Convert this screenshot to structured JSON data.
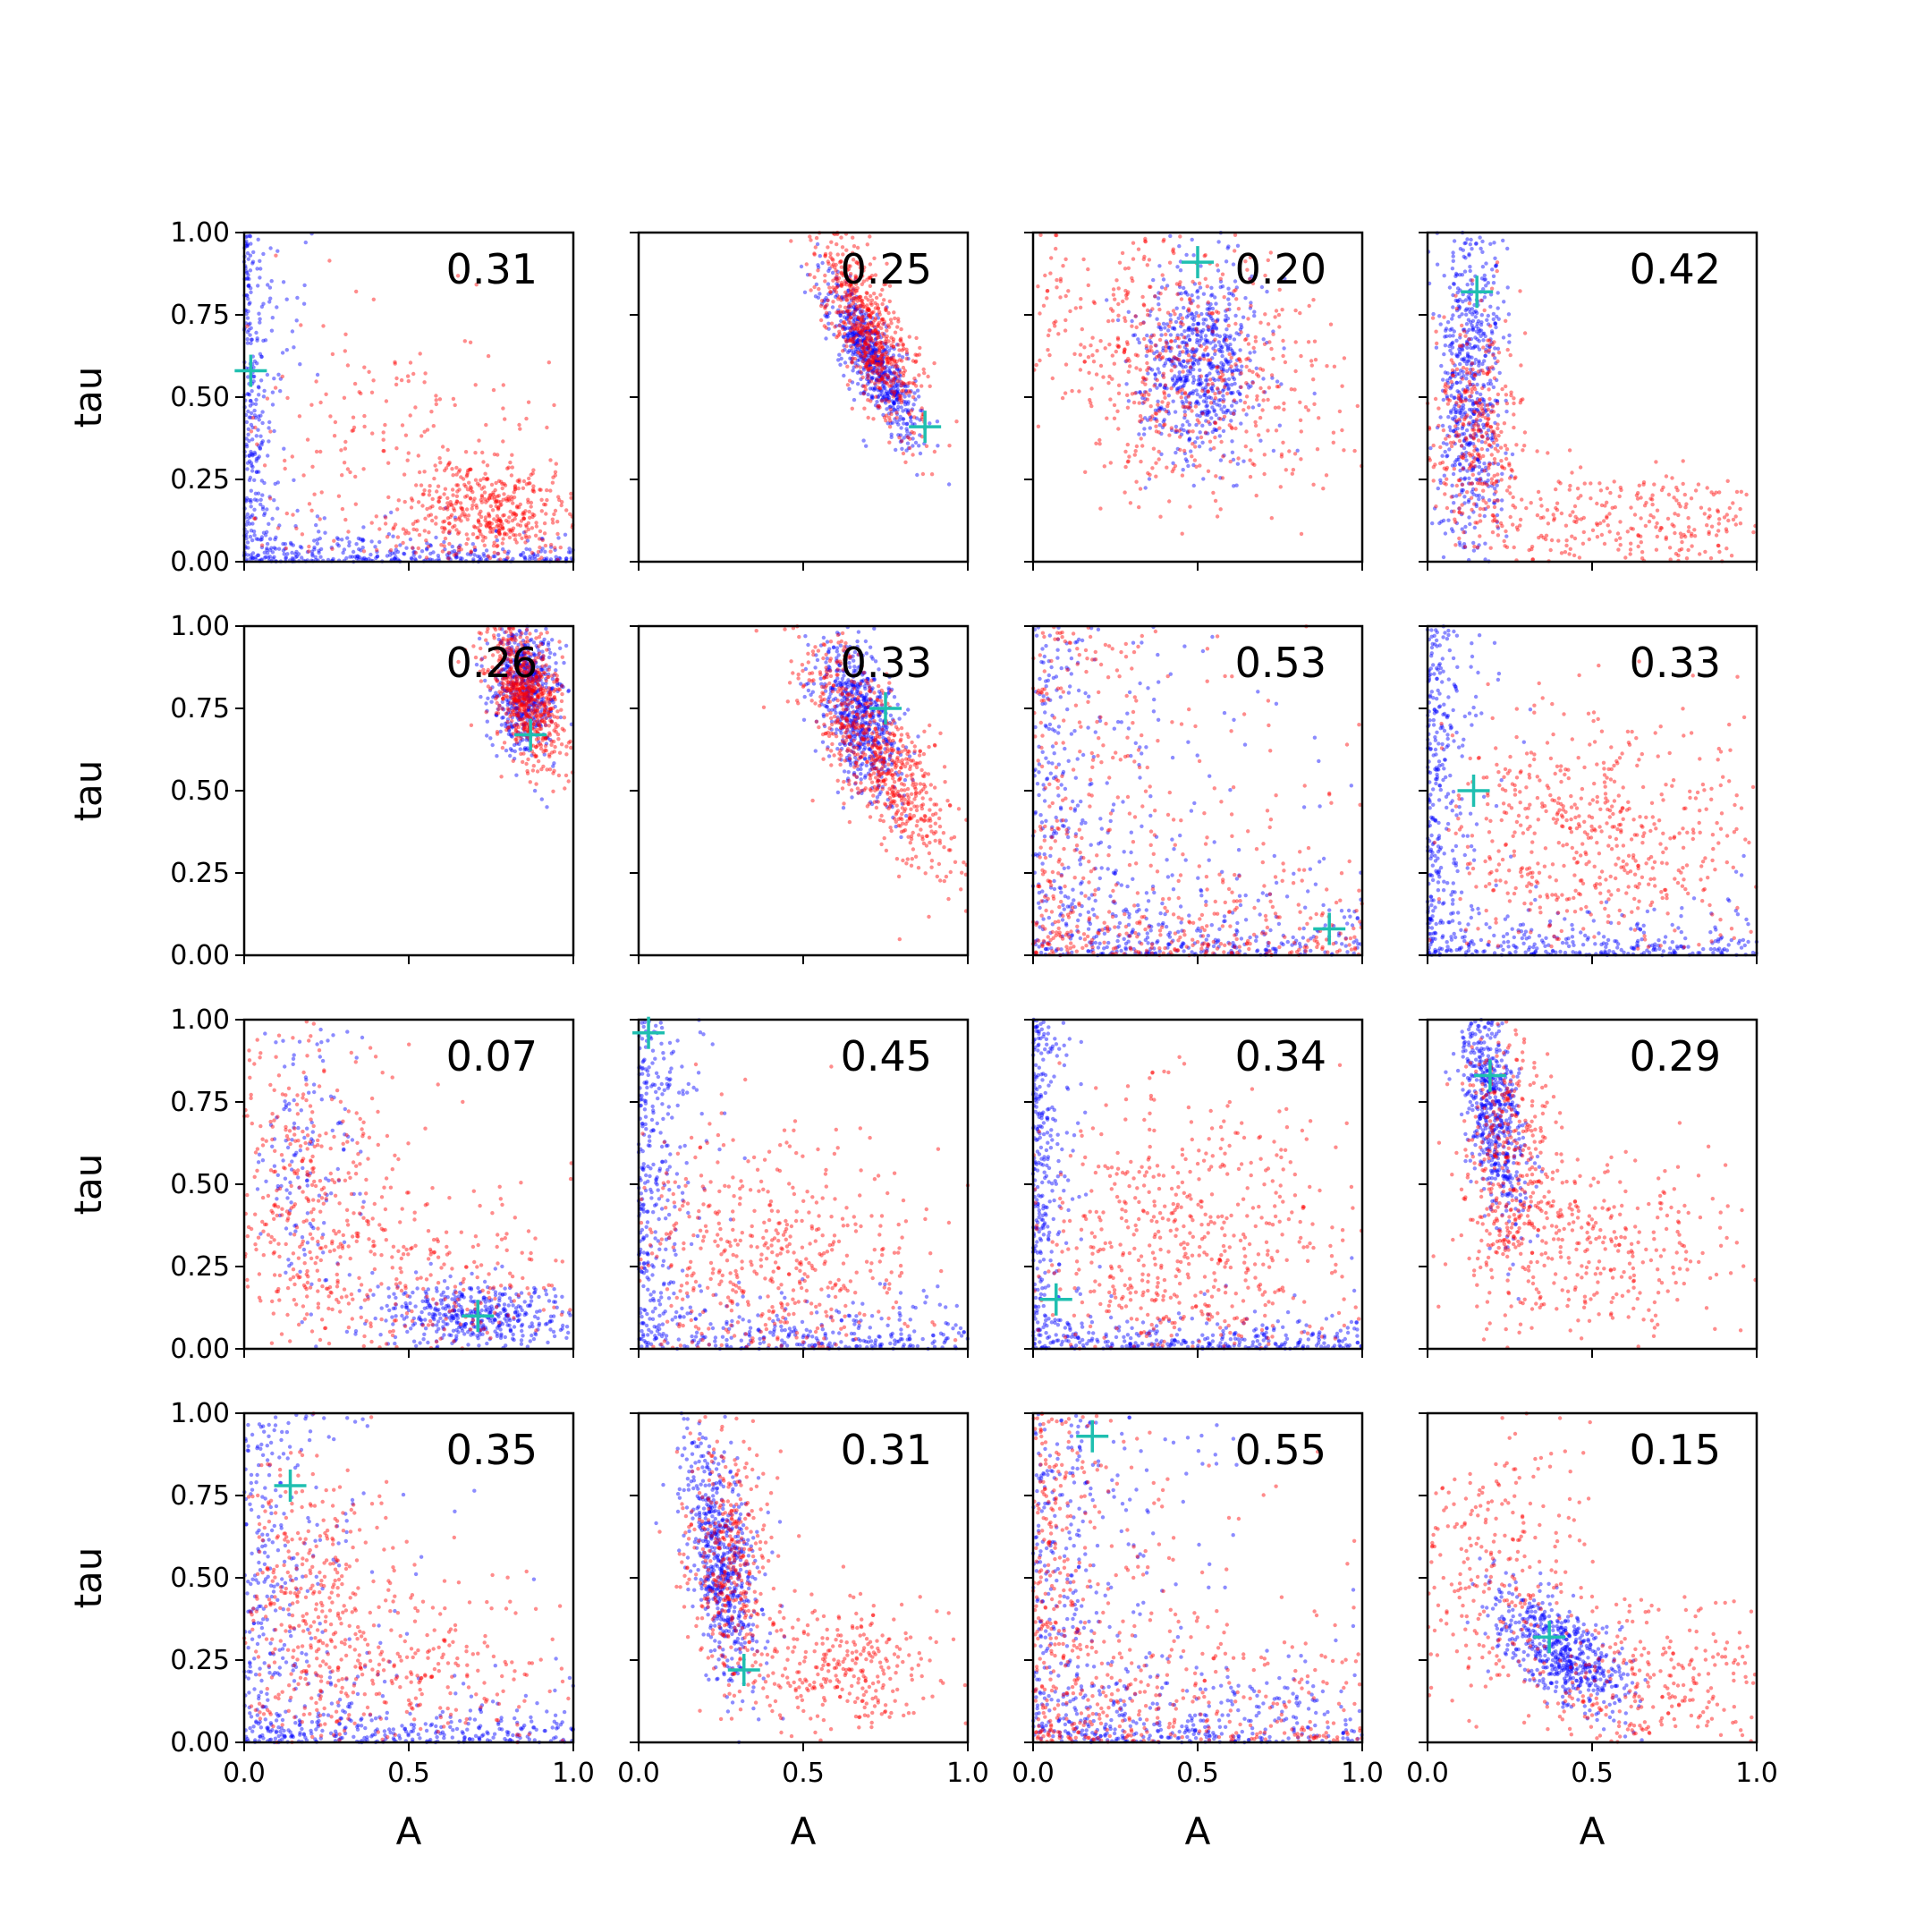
{
  "chart_data": {
    "type": "scatter",
    "layout": {
      "rows": 4,
      "cols": 4
    },
    "xlabel": "A",
    "ylabel": "tau",
    "xlim": [
      0,
      1
    ],
    "ylim": [
      0,
      1
    ],
    "xticks": [
      "0.0",
      "0.5",
      "1.0"
    ],
    "yticks": [
      "0.00",
      "0.25",
      "0.50",
      "0.75",
      "1.00"
    ],
    "grid": false,
    "colors": {
      "blue": "#0000ff",
      "red": "#ff0000",
      "marker": "#1fbfb0"
    },
    "panels": [
      {
        "value": "0.31",
        "marker": [
          0.02,
          0.58
        ],
        "blue": {
          "shape": "L",
          "x_floor": 0.04,
          "y_floor": 0.03,
          "n": 600
        },
        "red": {
          "clusters": [
            {
              "x": 0.75,
              "y": 0.15,
              "sx": 0.12,
              "sy": 0.08,
              "n": 450
            },
            {
              "x": 0.45,
              "y": 0.35,
              "sx": 0.25,
              "sy": 0.25,
              "n": 220
            }
          ]
        }
      },
      {
        "value": "0.25",
        "marker": [
          0.87,
          0.41
        ],
        "blue": {
          "clusters": [
            {
              "x": 0.71,
              "y": 0.62,
              "sx": 0.07,
              "sy": 0.12,
              "rho": -0.8,
              "n": 650
            }
          ]
        },
        "red": {
          "clusters": [
            {
              "x": 0.7,
              "y": 0.7,
              "sx": 0.08,
              "sy": 0.15,
              "rho": -0.75,
              "n": 650
            }
          ]
        }
      },
      {
        "value": "0.20",
        "marker": [
          0.5,
          0.91
        ],
        "blue": {
          "clusters": [
            {
              "x": 0.5,
              "y": 0.6,
              "sx": 0.09,
              "sy": 0.14,
              "n": 650
            }
          ]
        },
        "red": {
          "clusters": [
            {
              "x": 0.45,
              "y": 0.6,
              "sx": 0.25,
              "sy": 0.22,
              "rho": -0.3,
              "n": 650
            }
          ]
        }
      },
      {
        "value": "0.42",
        "marker": [
          0.15,
          0.82
        ],
        "blue": {
          "clusters": [
            {
              "x": 0.13,
              "y": 0.55,
              "sx": 0.05,
              "sy": 0.28,
              "n": 650
            }
          ]
        },
        "red": {
          "clusters": [
            {
              "x": 0.15,
              "y": 0.4,
              "sx": 0.07,
              "sy": 0.18,
              "n": 350
            },
            {
              "x": 0.6,
              "y": 0.12,
              "sx": 0.25,
              "sy": 0.08,
              "n": 300
            }
          ]
        }
      },
      {
        "value": "0.26",
        "marker": [
          0.87,
          0.67
        ],
        "blue": {
          "clusters": [
            {
              "x": 0.85,
              "y": 0.82,
              "sx": 0.05,
              "sy": 0.1,
              "n": 600
            }
          ]
        },
        "red": {
          "clusters": [
            {
              "x": 0.85,
              "y": 0.8,
              "sx": 0.06,
              "sy": 0.11,
              "rho": -0.5,
              "n": 700
            }
          ]
        }
      },
      {
        "value": "0.33",
        "marker": [
          0.75,
          0.75
        ],
        "blue": {
          "clusters": [
            {
              "x": 0.67,
              "y": 0.72,
              "sx": 0.06,
              "sy": 0.12,
              "rho": -0.5,
              "n": 600
            }
          ]
        },
        "red": {
          "clusters": [
            {
              "x": 0.72,
              "y": 0.62,
              "sx": 0.12,
              "sy": 0.18,
              "rho": -0.8,
              "n": 700
            }
          ]
        }
      },
      {
        "value": "0.53",
        "marker": [
          0.9,
          0.08
        ],
        "blue": {
          "shape": "L",
          "x_floor": 0.2,
          "y_floor": 0.08,
          "n": 600
        },
        "red": {
          "shape": "L",
          "x_floor": 0.25,
          "y_floor": 0.1,
          "n": 550
        }
      },
      {
        "value": "0.33",
        "marker": [
          0.14,
          0.5
        ],
        "blue": {
          "shape": "L",
          "x_floor": 0.05,
          "y_floor": 0.05,
          "n": 600
        },
        "red": {
          "clusters": [
            {
              "x": 0.5,
              "y": 0.35,
              "sx": 0.25,
              "sy": 0.2,
              "n": 600
            }
          ]
        }
      },
      {
        "value": "0.07",
        "marker": [
          0.71,
          0.1
        ],
        "blue": {
          "clusters": [
            {
              "x": 0.7,
              "y": 0.1,
              "sx": 0.15,
              "sy": 0.05,
              "n": 450
            },
            {
              "x": 0.2,
              "y": 0.6,
              "sx": 0.08,
              "sy": 0.25,
              "n": 150
            }
          ]
        },
        "red": {
          "clusters": [
            {
              "x": 0.2,
              "y": 0.45,
              "sx": 0.15,
              "sy": 0.25,
              "n": 400
            },
            {
              "x": 0.6,
              "y": 0.2,
              "sx": 0.25,
              "sy": 0.15,
              "n": 250
            }
          ]
        }
      },
      {
        "value": "0.45",
        "marker": [
          0.03,
          0.96
        ],
        "blue": {
          "shape": "L",
          "x_floor": 0.06,
          "y_floor": 0.05,
          "n": 600
        },
        "red": {
          "clusters": [
            {
              "x": 0.35,
              "y": 0.25,
              "sx": 0.25,
              "sy": 0.2,
              "n": 600
            }
          ]
        }
      },
      {
        "value": "0.34",
        "marker": [
          0.07,
          0.15
        ],
        "blue": {
          "shape": "L",
          "x_floor": 0.04,
          "y_floor": 0.04,
          "n": 600
        },
        "red": {
          "clusters": [
            {
              "x": 0.45,
              "y": 0.3,
              "sx": 0.25,
              "sy": 0.25,
              "n": 650
            }
          ]
        }
      },
      {
        "value": "0.29",
        "marker": [
          0.19,
          0.83
        ],
        "blue": {
          "clusters": [
            {
              "x": 0.2,
              "y": 0.72,
              "sx": 0.05,
              "sy": 0.18,
              "rho": -0.5,
              "n": 600
            }
          ]
        },
        "red": {
          "clusters": [
            {
              "x": 0.25,
              "y": 0.6,
              "sx": 0.07,
              "sy": 0.22,
              "n": 350
            },
            {
              "x": 0.5,
              "y": 0.3,
              "sx": 0.2,
              "sy": 0.15,
              "n": 350
            }
          ]
        }
      },
      {
        "value": "0.35",
        "marker": [
          0.14,
          0.78
        ],
        "blue": {
          "shape": "L",
          "x_floor": 0.14,
          "y_floor": 0.05,
          "n": 600
        },
        "red": {
          "clusters": [
            {
              "x": 0.2,
              "y": 0.4,
              "sx": 0.12,
              "sy": 0.25,
              "n": 400
            },
            {
              "x": 0.55,
              "y": 0.2,
              "sx": 0.22,
              "sy": 0.15,
              "n": 250
            }
          ]
        }
      },
      {
        "value": "0.31",
        "marker": [
          0.32,
          0.22
        ],
        "blue": {
          "clusters": [
            {
              "x": 0.25,
              "y": 0.55,
              "sx": 0.06,
              "sy": 0.2,
              "rho": -0.5,
              "n": 650
            }
          ]
        },
        "red": {
          "clusters": [
            {
              "x": 0.28,
              "y": 0.55,
              "sx": 0.07,
              "sy": 0.2,
              "n": 400
            },
            {
              "x": 0.65,
              "y": 0.22,
              "sx": 0.15,
              "sy": 0.1,
              "n": 300
            }
          ]
        }
      },
      {
        "value": "0.55",
        "marker": [
          0.18,
          0.93
        ],
        "blue": {
          "shape": "L",
          "x_floor": 0.17,
          "y_floor": 0.08,
          "n": 650
        },
        "red": {
          "shape": "L",
          "x_floor": 0.15,
          "y_floor": 0.15,
          "n": 600
        }
      },
      {
        "value": "0.15",
        "marker": [
          0.37,
          0.32
        ],
        "blue": {
          "clusters": [
            {
              "x": 0.4,
              "y": 0.28,
              "sx": 0.1,
              "sy": 0.09,
              "rho": -0.6,
              "n": 600
            }
          ]
        },
        "red": {
          "clusters": [
            {
              "x": 0.2,
              "y": 0.55,
              "sx": 0.15,
              "sy": 0.25,
              "n": 300
            },
            {
              "x": 0.7,
              "y": 0.18,
              "sx": 0.2,
              "sy": 0.12,
              "n": 300
            }
          ]
        }
      }
    ]
  }
}
